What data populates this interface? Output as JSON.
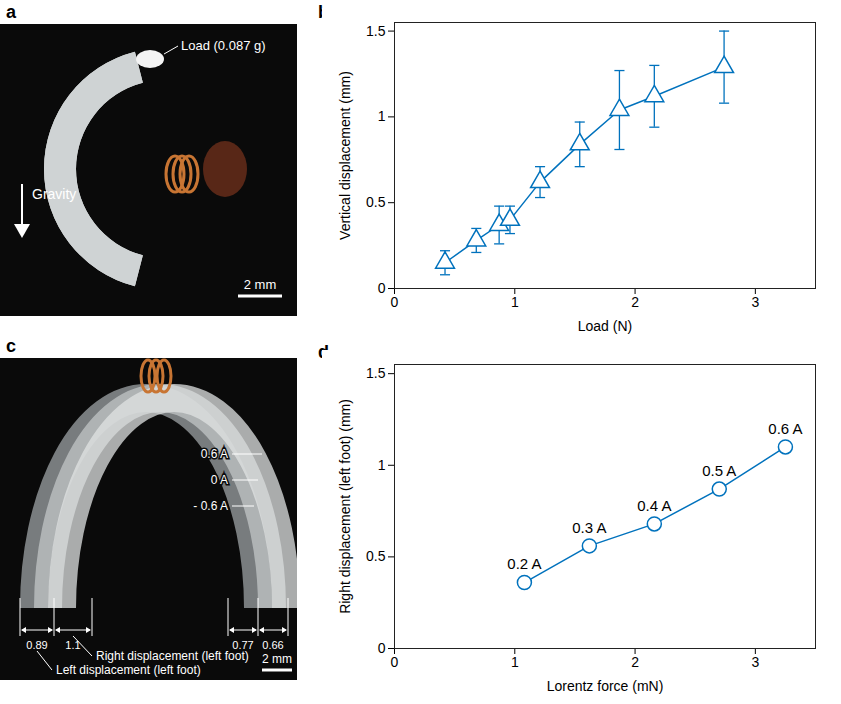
{
  "chart_data": [
    {
      "panel": "b",
      "type": "line",
      "x_label": "Load (N)",
      "y_label": "Vertical displacement (mm)",
      "x": [
        0.42,
        0.68,
        0.87,
        0.96,
        1.21,
        1.54,
        1.87,
        2.16,
        2.74
      ],
      "values": [
        0.15,
        0.28,
        0.37,
        0.4,
        0.62,
        0.84,
        1.04,
        1.12,
        1.29
      ],
      "errors": [
        0.07,
        0.07,
        0.11,
        0.08,
        0.09,
        0.13,
        0.23,
        0.18,
        0.21
      ],
      "color": "#0072BD",
      "marker": "triangle",
      "xlim": [
        0,
        3.5
      ],
      "ylim": [
        0,
        1.55
      ],
      "xticks": [
        0,
        1,
        2,
        3
      ],
      "yticks": [
        0,
        0.5,
        1,
        1.5
      ],
      "grid": false
    },
    {
      "panel": "d",
      "type": "line",
      "x_label": "Lorentz force (mN)",
      "y_label": "Right displacement (left foot) (mm)",
      "x": [
        1.08,
        1.62,
        2.16,
        2.7,
        3.25
      ],
      "values": [
        0.36,
        0.56,
        0.68,
        0.87,
        1.1
      ],
      "point_labels": [
        "0.2 A",
        "0.3 A",
        "0.4 A",
        "0.5 A",
        "0.6 A"
      ],
      "color": "#0072BD",
      "marker": "circle",
      "xlim": [
        0,
        3.5
      ],
      "ylim": [
        0,
        1.55
      ],
      "xticks": [
        0,
        1,
        2,
        3
      ],
      "yticks": [
        0,
        0.5,
        1,
        1.5
      ],
      "grid": false
    }
  ],
  "images": [
    {
      "panel": "a",
      "load": "Load (0.087 g)",
      "gravity": "Gravity",
      "scale_bar": "2 mm"
    },
    {
      "panel": "c",
      "currents": [
        "0.6 A",
        "0 A",
        "- 0.6 A"
      ],
      "left_foot": [
        "0.89",
        "1.1"
      ],
      "right_foot": [
        "0.77",
        "0.66"
      ],
      "right_label": "Right displacement (left foot)",
      "left_label": "Left displacement (left foot)",
      "scale_bar": "2 mm"
    }
  ]
}
